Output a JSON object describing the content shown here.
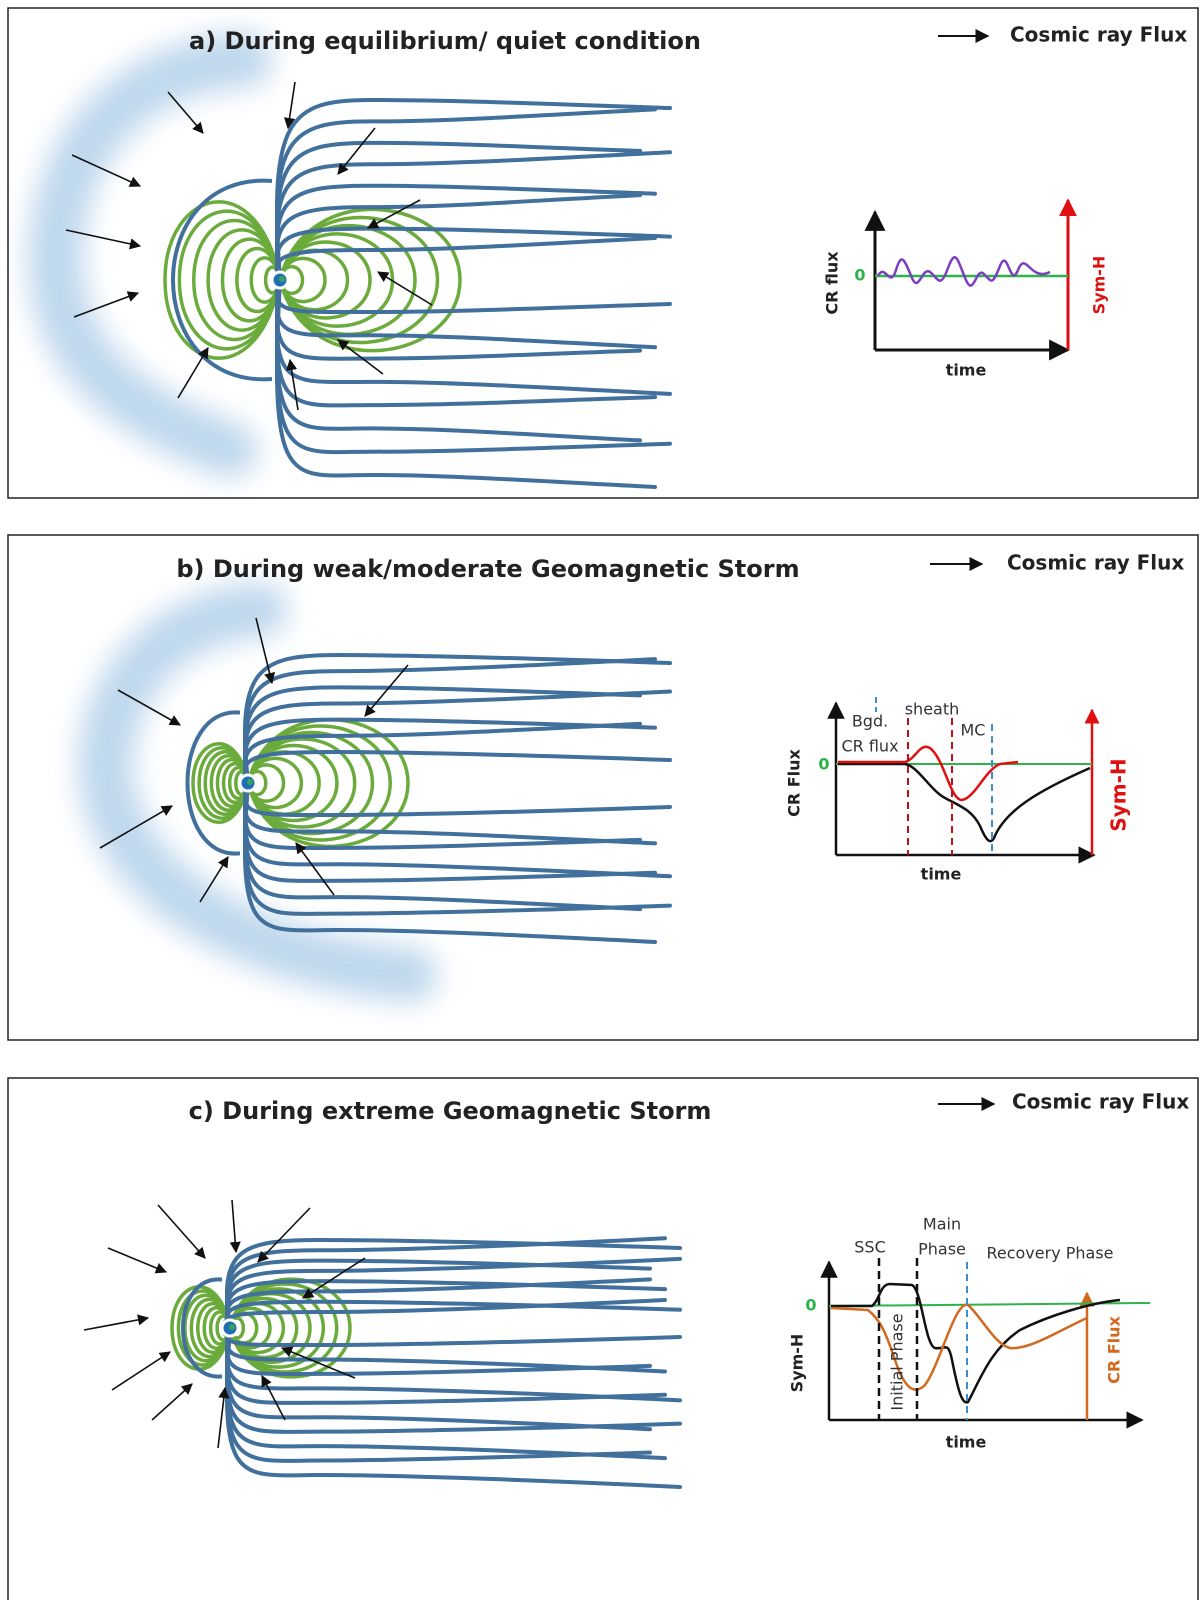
{
  "panels": [
    {
      "title": "a) During equilibrium/ quiet condition",
      "legend": "Cosmic ray Flux",
      "inset": {
        "y_label": "CR flux",
        "zero": "0",
        "y2_label": "Sym-H",
        "x_label": "time"
      }
    },
    {
      "title": "b) During weak/moderate Geomagnetic Storm",
      "legend": "Cosmic ray Flux",
      "inset": {
        "annotations": [
          "Bgd.",
          "CR flux",
          "sheath",
          "MC"
        ],
        "zero": "0",
        "y_label": "CR Flux",
        "y2_label": "Sym-H",
        "x_label": "time"
      }
    },
    {
      "title": "c) During extreme Geomagnetic Storm",
      "legend": "Cosmic ray Flux",
      "inset": {
        "annotations": [
          "SSC",
          "Main",
          "Phase",
          "Recovery Phase",
          "Initial Phase"
        ],
        "zero": "0",
        "y_label": "Sym-H",
        "y2_label": "CR Flux",
        "x_label": "time"
      }
    }
  ]
}
